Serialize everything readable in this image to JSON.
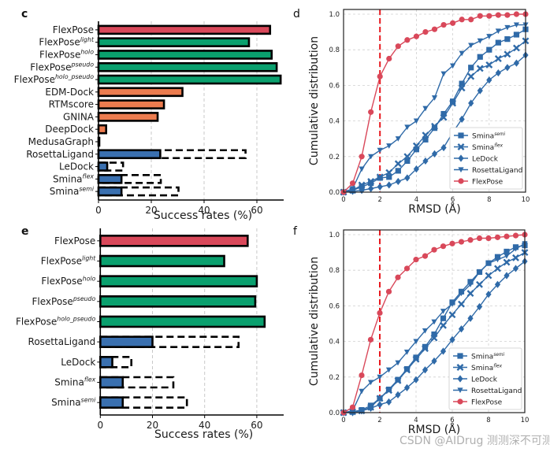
{
  "watermark": "CSDN @AIDrug 测测深不可测",
  "chart_data": [
    {
      "panel": "c",
      "type": "bar",
      "orientation": "horizontal",
      "xlabel": "Success rates (%)",
      "xlim": [
        0,
        70
      ],
      "xticks": [
        0,
        20,
        40,
        60
      ],
      "grid": "vertical dashed",
      "categories": [
        {
          "name": "FlexPose",
          "sup": ""
        },
        {
          "name": "FlexPose",
          "sup": "light"
        },
        {
          "name": "FlexPose",
          "sup": "holo"
        },
        {
          "name": "FlexPose",
          "sup": "pseudo"
        },
        {
          "name": "FlexPose",
          "sup": "holo_pseudo"
        },
        {
          "name": "EDM-Dock",
          "sup": ""
        },
        {
          "name": "RTMscore",
          "sup": ""
        },
        {
          "name": "GNINA",
          "sup": ""
        },
        {
          "name": "DeepDock",
          "sup": ""
        },
        {
          "name": "MedusaGraph",
          "sup": ""
        },
        {
          "name": "RosettaLigand",
          "sup": ""
        },
        {
          "name": "LeDock",
          "sup": ""
        },
        {
          "name": "Smina",
          "sup": "flex"
        },
        {
          "name": "Smina",
          "sup": "semi"
        }
      ],
      "values": [
        65.0,
        57.0,
        65.6,
        67.5,
        69.0,
        31.8,
        24.8,
        22.4,
        2.9,
        0.3,
        23.4,
        3.3,
        8.7,
        8.7
      ],
      "dashed_values": [
        null,
        null,
        null,
        null,
        null,
        null,
        null,
        null,
        null,
        null,
        55.7,
        9.3,
        23.6,
        30.3
      ],
      "colors": [
        "#d9485a",
        "#0aa06e",
        "#0aa06e",
        "#0aa06e",
        "#0aa06e",
        "#ec7c4f",
        "#ec7c4f",
        "#ec7c4f",
        "#ec7c4f",
        "#ec7c4f",
        "#3a70b0",
        "#3a70b0",
        "#3a70b0",
        "#3a70b0"
      ]
    },
    {
      "panel": "d",
      "type": "line",
      "xlabel": "RMSD (Å)",
      "ylabel": "Cumulative distribution",
      "xlim": [
        0,
        10
      ],
      "ylim": [
        0,
        1.0
      ],
      "xticks": [
        0,
        2,
        4,
        6,
        8,
        10
      ],
      "yticks": [
        0.0,
        0.2,
        0.4,
        0.6,
        0.8,
        1.0
      ],
      "grid": true,
      "threshold_line": {
        "x": 2,
        "color": "#e8191f",
        "style": "dashed"
      },
      "legend": "lower-right",
      "x": [
        0,
        0.5,
        1,
        1.5,
        2,
        2.5,
        3,
        3.5,
        4,
        4.5,
        5,
        5.5,
        6,
        6.5,
        7,
        7.5,
        8,
        8.5,
        9,
        9.5,
        10
      ],
      "series": [
        {
          "name": "Smina",
          "sup": "semi",
          "marker": "square",
          "color": "#2f6aa8",
          "values": [
            0,
            0.01,
            0.03,
            0.05,
            0.08,
            0.085,
            0.12,
            0.175,
            0.24,
            0.295,
            0.36,
            0.44,
            0.51,
            0.61,
            0.7,
            0.76,
            0.8,
            0.84,
            0.86,
            0.885,
            0.915
          ]
        },
        {
          "name": "Smina",
          "sup": "flex",
          "marker": "x",
          "color": "#2f6aa8",
          "values": [
            0,
            0.01,
            0.04,
            0.06,
            0.085,
            0.11,
            0.16,
            0.2,
            0.26,
            0.32,
            0.37,
            0.42,
            0.5,
            0.585,
            0.65,
            0.695,
            0.715,
            0.75,
            0.775,
            0.81,
            0.85
          ]
        },
        {
          "name": "LeDock",
          "sup": "",
          "marker": "diamond",
          "color": "#2f6aa8",
          "values": [
            0,
            0.005,
            0.01,
            0.02,
            0.03,
            0.04,
            0.06,
            0.08,
            0.13,
            0.175,
            0.215,
            0.25,
            0.335,
            0.41,
            0.5,
            0.57,
            0.63,
            0.67,
            0.7,
            0.725,
            0.77
          ]
        },
        {
          "name": "RosettaLigand",
          "sup": "",
          "marker": "triangle-down",
          "color": "#2f6aa8",
          "values": [
            0,
            0.02,
            0.13,
            0.2,
            0.235,
            0.26,
            0.3,
            0.365,
            0.4,
            0.47,
            0.53,
            0.665,
            0.71,
            0.78,
            0.825,
            0.85,
            0.875,
            0.905,
            0.925,
            0.94,
            0.94
          ]
        },
        {
          "name": "FlexPose",
          "sup": "",
          "marker": "circle",
          "color": "#d9485a",
          "values": [
            0,
            0.05,
            0.2,
            0.45,
            0.65,
            0.75,
            0.82,
            0.855,
            0.875,
            0.9,
            0.915,
            0.94,
            0.95,
            0.97,
            0.97,
            0.99,
            0.99,
            0.995,
            0.995,
            1.0,
            1.0
          ]
        }
      ]
    },
    {
      "panel": "e",
      "type": "bar",
      "orientation": "horizontal",
      "xlabel": "Success rates (%)",
      "xlim": [
        0,
        70
      ],
      "xticks": [
        0,
        20,
        40,
        60
      ],
      "grid": "vertical dashed",
      "categories": [
        {
          "name": "FlexPose",
          "sup": ""
        },
        {
          "name": "FlexPose",
          "sup": "light"
        },
        {
          "name": "FlexPose",
          "sup": "holo"
        },
        {
          "name": "FlexPose",
          "sup": "pseudo"
        },
        {
          "name": "FlexPose",
          "sup": "holo_pseudo"
        },
        {
          "name": "RosettaLigand",
          "sup": ""
        },
        {
          "name": "LeDock",
          "sup": ""
        },
        {
          "name": "Smina",
          "sup": "flex"
        },
        {
          "name": "Smina",
          "sup": "semi"
        }
      ],
      "values": [
        56.5,
        47.5,
        60.0,
        59.4,
        63.0,
        20.0,
        4.6,
        8.6,
        8.6
      ],
      "dashed_values": [
        null,
        null,
        null,
        null,
        null,
        53.0,
        11.9,
        28.0,
        33.2
      ],
      "colors": [
        "#d9485a",
        "#0aa06e",
        "#0aa06e",
        "#0aa06e",
        "#0aa06e",
        "#3a70b0",
        "#3a70b0",
        "#3a70b0",
        "#3a70b0"
      ]
    },
    {
      "panel": "f",
      "type": "line",
      "xlabel": "RMSD (Å)",
      "ylabel": "Cumulative distribution",
      "xlim": [
        0,
        10
      ],
      "ylim": [
        0,
        1.0
      ],
      "xticks": [
        0,
        2,
        4,
        6,
        8,
        10
      ],
      "yticks": [
        0.0,
        0.2,
        0.4,
        0.6,
        0.8,
        1.0
      ],
      "grid": true,
      "threshold_line": {
        "x": 2,
        "color": "#e8191f",
        "style": "dashed"
      },
      "legend": "lower-right",
      "x": [
        0,
        0.5,
        1,
        1.5,
        2,
        2.5,
        3,
        3.5,
        4,
        4.5,
        5,
        5.5,
        6,
        6.5,
        7,
        7.5,
        8,
        8.5,
        9,
        9.5,
        10
      ],
      "series": [
        {
          "name": "Smina",
          "sup": "semi",
          "marker": "square",
          "color": "#2f6aa8",
          "values": [
            0,
            0.005,
            0.015,
            0.04,
            0.08,
            0.13,
            0.185,
            0.245,
            0.31,
            0.37,
            0.44,
            0.53,
            0.62,
            0.68,
            0.735,
            0.79,
            0.84,
            0.875,
            0.905,
            0.93,
            0.94
          ]
        },
        {
          "name": "Smina",
          "sup": "flex",
          "marker": "x",
          "color": "#2f6aa8",
          "values": [
            0,
            0.005,
            0.01,
            0.03,
            0.08,
            0.125,
            0.18,
            0.24,
            0.3,
            0.36,
            0.42,
            0.49,
            0.55,
            0.61,
            0.67,
            0.72,
            0.77,
            0.81,
            0.845,
            0.87,
            0.9
          ]
        },
        {
          "name": "LeDock",
          "sup": "",
          "marker": "diamond",
          "color": "#2f6aa8",
          "values": [
            0,
            0.0,
            0.01,
            0.025,
            0.045,
            0.06,
            0.1,
            0.14,
            0.185,
            0.24,
            0.29,
            0.345,
            0.41,
            0.47,
            0.53,
            0.595,
            0.665,
            0.72,
            0.77,
            0.81,
            0.85
          ]
        },
        {
          "name": "RosettaLigand",
          "sup": "",
          "marker": "triangle-down",
          "color": "#2f6aa8",
          "values": [
            0,
            0.01,
            0.12,
            0.17,
            0.2,
            0.24,
            0.28,
            0.34,
            0.4,
            0.46,
            0.51,
            0.57,
            0.61,
            0.67,
            0.72,
            0.79,
            0.84,
            0.86,
            0.88,
            0.92,
            0.95
          ]
        },
        {
          "name": "FlexPose",
          "sup": "",
          "marker": "circle",
          "color": "#d9485a",
          "values": [
            0,
            0.03,
            0.21,
            0.41,
            0.56,
            0.68,
            0.76,
            0.81,
            0.86,
            0.88,
            0.915,
            0.935,
            0.95,
            0.96,
            0.97,
            0.98,
            0.98,
            0.985,
            0.99,
            0.995,
            1.0
          ]
        }
      ]
    }
  ]
}
